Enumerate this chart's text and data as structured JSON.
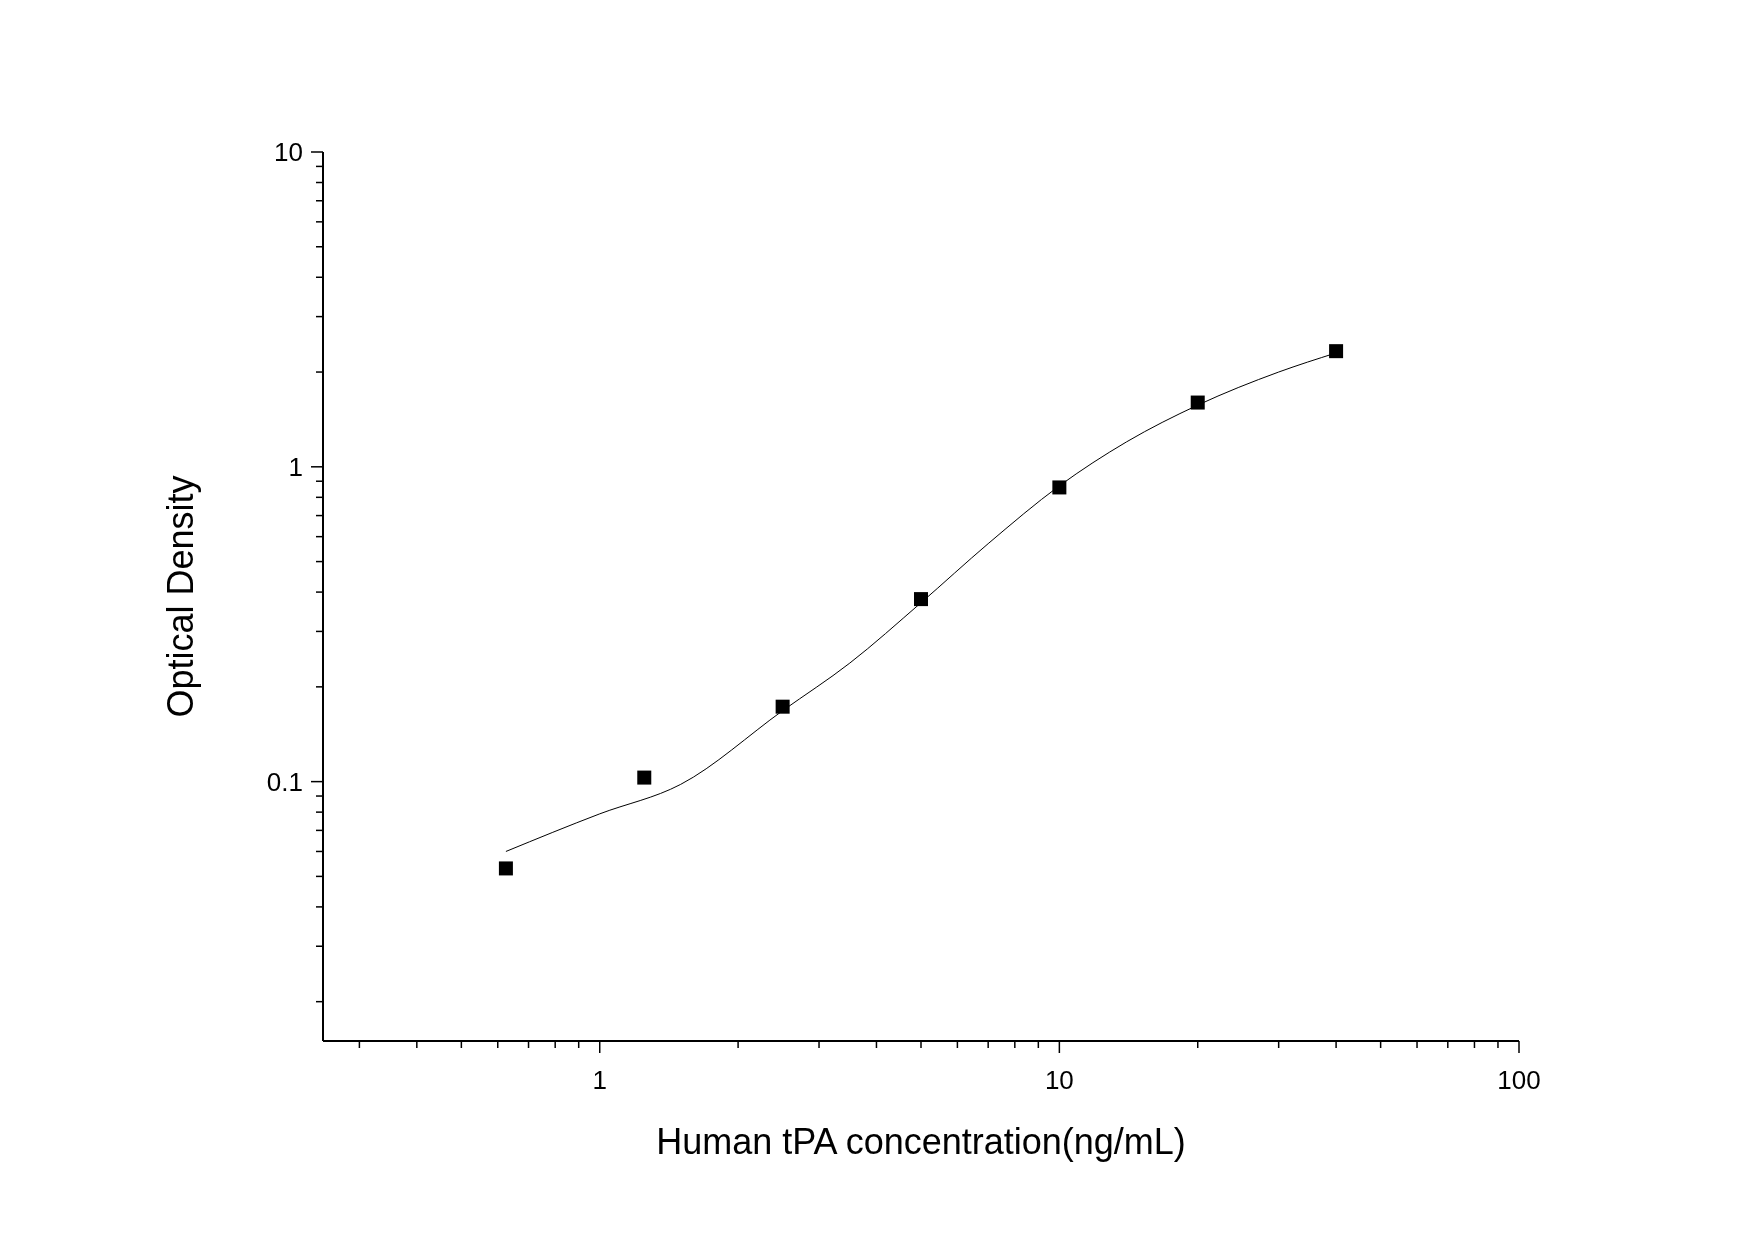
{
  "chart_data": {
    "type": "scatter",
    "xlabel": "Human tPA concentration(ng/mL)",
    "ylabel": "Optical Density",
    "log": "xy",
    "grid": false,
    "marker": "square",
    "xlim": [
      0.25,
      100
    ],
    "ylim": [
      0.015,
      10
    ],
    "xticks": [
      {
        "value": 0.3,
        "label": null
      },
      {
        "value": 0.4,
        "label": null
      },
      {
        "value": 0.5,
        "label": null
      },
      {
        "value": 0.6,
        "label": null
      },
      {
        "value": 0.7,
        "label": null
      },
      {
        "value": 0.8,
        "label": null
      },
      {
        "value": 0.9,
        "label": null
      },
      1,
      {
        "value": 2,
        "label": null
      },
      {
        "value": 3,
        "label": null
      },
      {
        "value": 4,
        "label": null
      },
      {
        "value": 5,
        "label": null
      },
      {
        "value": 6,
        "label": null
      },
      {
        "value": 7,
        "label": null
      },
      {
        "value": 8,
        "label": null
      },
      {
        "value": 9,
        "label": null
      },
      10,
      {
        "value": 20,
        "label": null
      },
      {
        "value": 30,
        "label": null
      },
      {
        "value": 40,
        "label": null
      },
      {
        "value": 50,
        "label": null
      },
      {
        "value": 60,
        "label": null
      },
      {
        "value": 70,
        "label": null
      },
      {
        "value": 80,
        "label": null
      },
      {
        "value": 90,
        "label": null
      },
      100
    ],
    "yticks": [
      {
        "value": 0.02,
        "label": null
      },
      {
        "value": 0.03,
        "label": null
      },
      {
        "value": 0.04,
        "label": null
      },
      {
        "value": 0.05,
        "label": null
      },
      {
        "value": 0.06,
        "label": null
      },
      {
        "value": 0.07,
        "label": null
      },
      {
        "value": 0.08,
        "label": null
      },
      {
        "value": 0.09,
        "label": null
      },
      0.1,
      {
        "value": 0.2,
        "label": null
      },
      {
        "value": 0.3,
        "label": null
      },
      {
        "value": 0.4,
        "label": null
      },
      {
        "value": 0.5,
        "label": null
      },
      {
        "value": 0.6,
        "label": null
      },
      {
        "value": 0.7,
        "label": null
      },
      {
        "value": 0.8,
        "label": null
      },
      {
        "value": 0.9,
        "label": null
      },
      1,
      {
        "value": 2,
        "label": null
      },
      {
        "value": 3,
        "label": null
      },
      {
        "value": 4,
        "label": null
      },
      {
        "value": 5,
        "label": null
      },
      {
        "value": 6,
        "label": null
      },
      {
        "value": 7,
        "label": null
      },
      {
        "value": 8,
        "label": null
      },
      {
        "value": 9,
        "label": null
      },
      10
    ],
    "series": [
      {
        "color": "#000000",
        "x": [
          0.625,
          1.25,
          2.5,
          5,
          10,
          20,
          40
        ],
        "values": [
          0.053,
          0.103,
          0.173,
          0.38,
          0.86,
          1.6,
          2.33
        ]
      },
      {
        "type": "line",
        "color": "#000000",
        "line_style": "solid",
        "marker": "none",
        "x": [
          0.625,
          1,
          1.5,
          2.5,
          3.5,
          5,
          7,
          10,
          14,
          20,
          30,
          40
        ],
        "values": [
          0.06,
          0.079,
          0.098,
          0.168,
          0.238,
          0.37,
          0.57,
          0.87,
          1.2,
          1.57,
          2.0,
          2.3
        ]
      }
    ]
  }
}
